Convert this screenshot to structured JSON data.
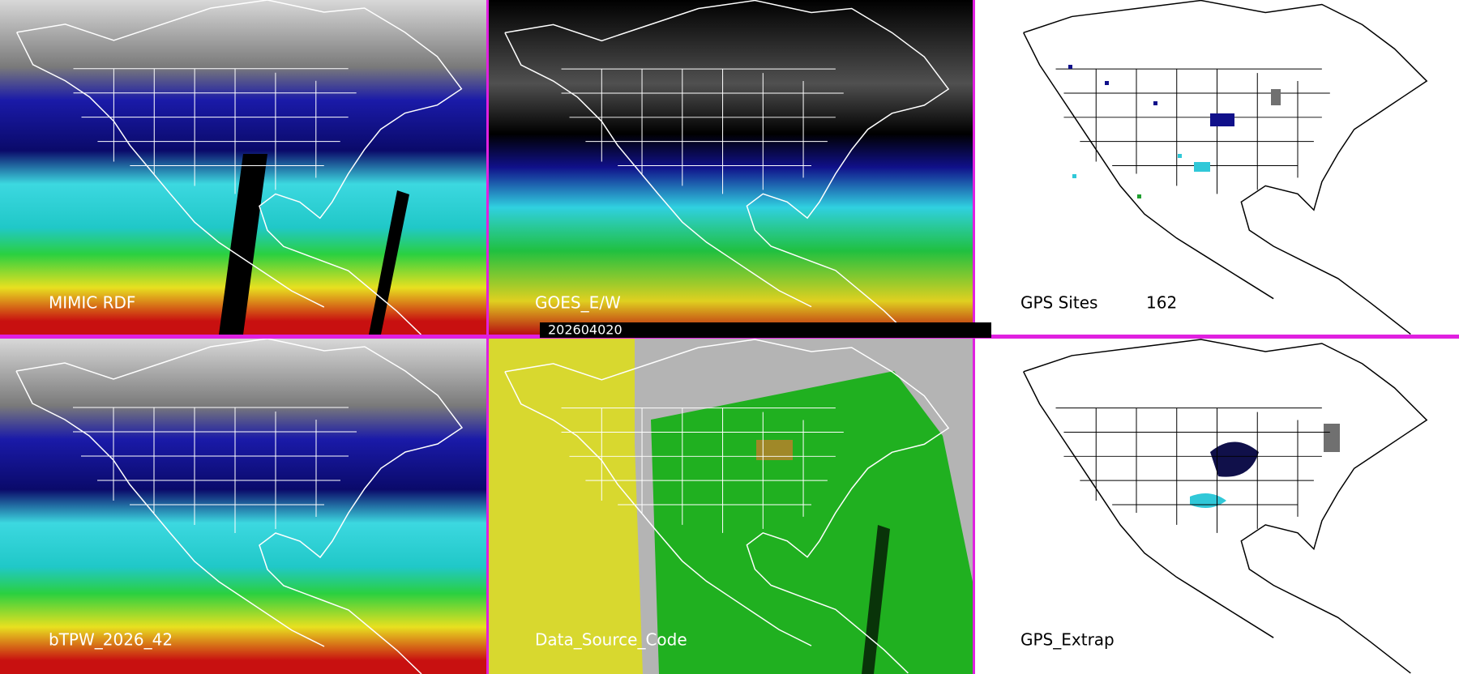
{
  "panels": [
    {
      "label": "MIMIC RDF"
    },
    {
      "label": "GOES_E/W",
      "timestamp": "202604020"
    },
    {
      "label": "GPS Sites",
      "count": 162
    },
    {
      "label": "bTPW_2026_42"
    },
    {
      "label": "Data_Source_Code"
    },
    {
      "label": "GPS_Extrap"
    }
  ]
}
